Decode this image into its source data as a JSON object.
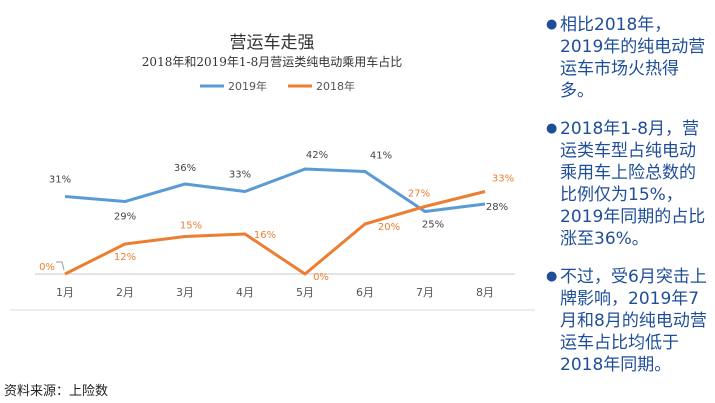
{
  "chart_data": {
    "type": "line",
    "title": "营运车走强",
    "subtitle": "2018年和2019年1-8月营运类纯电动乘用车占比",
    "categories": [
      "1月",
      "2月",
      "3月",
      "4月",
      "5月",
      "6月",
      "7月",
      "8月"
    ],
    "series": [
      {
        "name": "2019年",
        "color": "#5b9bd5",
        "values": [
          31,
          29,
          36,
          33,
          42,
          41,
          25,
          28
        ],
        "labels": [
          "31%",
          "29%",
          "36%",
          "33%",
          "42%",
          "41%",
          "25%",
          "28%"
        ]
      },
      {
        "name": "2018年",
        "color": "#ed7d31",
        "values": [
          0,
          12,
          15,
          16,
          0,
          20,
          27,
          33
        ],
        "labels": [
          "0%",
          "12%",
          "15%",
          "16%",
          "0%",
          "20%",
          "27%",
          "33%"
        ]
      }
    ],
    "ylim": [
      0,
      50
    ],
    "grid": false,
    "legend": "top"
  },
  "bullets": [
    "相比2018年，2019年的纯电动营运车市场火热得多。",
    "2018年1-8月，营运类车型占纯电动乘用车上险总数的比例仅为15%，2019年同期的占比涨至36%。",
    "不过，受6月突击上牌影响，2019年7月和8月的纯电动营运车占比均低于2018年同期。"
  ],
  "source": "资料来源：上险数"
}
